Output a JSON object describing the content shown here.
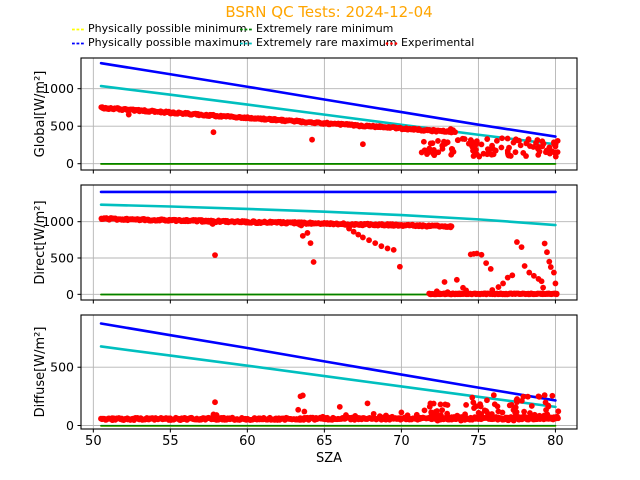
{
  "title": "BSRN QC Tests: 2024-12-04",
  "title_color": "#FFA500",
  "legend": {
    "entries": [
      {
        "label": "Physically possible minimum",
        "color": "#FFFF00",
        "style": "dashed"
      },
      {
        "label": "Extremely rare minimum",
        "color": "#008000",
        "style": "dashed"
      },
      {
        "label": "Physically possible maximum",
        "color": "#0000FF",
        "style": "dashed"
      },
      {
        "label": "Extremely rare maximum",
        "color": "#00BFBF",
        "style": "dashed"
      },
      {
        "label": "Experimental",
        "color": "#FF0000",
        "style": "dotted"
      }
    ]
  },
  "chart_data": {
    "type": "scatter",
    "title": "BSRN QC Tests: 2024-12-04",
    "xlabel": "SZA",
    "xlim": [
      49.2,
      81.4
    ],
    "xticks": [
      50,
      55,
      60,
      65,
      70,
      75,
      80
    ],
    "grid": true,
    "legend_position": "upper center, 2 rows",
    "line_x": [
      50.5,
      55,
      60,
      65,
      70,
      75,
      80
    ],
    "subplots": [
      {
        "name": "global",
        "ylabel": "Global[W/m²]",
        "ylim": [
          -84,
          1409
        ],
        "yticks": [
          0,
          500,
          1000
        ],
        "series": [
          {
            "name": "Physically possible minimum",
            "color": "#FFFF00",
            "values": [
              -4,
              -4,
              -4,
              -4,
              -4,
              -4,
              -4
            ]
          },
          {
            "name": "Physically possible maximum",
            "color": "#0000FF",
            "values": [
              1340,
              1192,
              1026,
              856,
              688,
              520,
              362
            ]
          },
          {
            "name": "Extremely rare minimum",
            "color": "#008000",
            "values": [
              -2,
              -2,
              -2,
              -2,
              -2,
              -2,
              -2
            ]
          },
          {
            "name": "Extremely rare maximum",
            "color": "#00BFBF",
            "values": [
              1035,
              920,
              788,
              654,
              519,
              386,
              259
            ]
          }
        ],
        "experimental": {
          "color": "#FF0000",
          "bands": [
            {
              "x0": 50.5,
              "x1": 73.5,
              "y0": 745,
              "y1": 420,
              "jitter": 12,
              "step": 0.07
            }
          ],
          "clouds": [
            {
              "x0": 71.3,
              "x1": 80.2,
              "n": 100,
              "ymin": 95,
              "ymax": 340,
              "bias": 1.2,
              "env": [
                71.5,
                480,
                80.3,
                305
              ]
            }
          ],
          "outliers": [
            [
              52.3,
              655
            ],
            [
              57.8,
              420
            ],
            [
              64.2,
              320
            ],
            [
              67.5,
              260
            ],
            [
              73.2,
              462
            ],
            [
              73.35,
              448
            ],
            [
              74.9,
              300
            ],
            [
              76.2,
              305
            ],
            [
              79.9,
              285
            ],
            [
              80.0,
              230
            ]
          ]
        }
      },
      {
        "name": "direct",
        "ylabel": "Direct[W/m²]",
        "ylim": [
          -78,
          1505
        ],
        "yticks": [
          0,
          500,
          1000
        ],
        "series": [
          {
            "name": "Physically possible minimum",
            "color": "#FFFF00",
            "values": [
              -4,
              -4,
              -4,
              -4,
              -4,
              -4,
              -4
            ]
          },
          {
            "name": "Physically possible maximum",
            "color": "#0000FF",
            "values": [
              1410,
              1410,
              1410,
              1410,
              1410,
              1410,
              1410
            ]
          },
          {
            "name": "Extremely rare minimum",
            "color": "#008000",
            "values": [
              -2,
              -2,
              -2,
              -2,
              -2,
              -2,
              -2
            ]
          },
          {
            "name": "Extremely rare maximum",
            "color": "#00BFBF",
            "values": [
              1234,
              1209,
              1176,
              1137,
              1091,
              1032,
              954
            ]
          }
        ],
        "experimental": {
          "color": "#FF0000",
          "bands": [
            {
              "x0": 50.5,
              "x1": 73.3,
              "y0": 1040,
              "y1": 935,
              "jitter": 13,
              "step": 0.07
            },
            {
              "x0": 71.8,
              "x1": 80.1,
              "y0": 6,
              "y1": 6,
              "jitter": 7,
              "step": 0.05
            }
          ],
          "clouds": [],
          "outliers": [
            [
              57.7,
              978
            ],
            [
              57.75,
              968
            ],
            [
              57.9,
              540
            ],
            [
              63.4,
              958
            ],
            [
              63.5,
              948
            ],
            [
              63.6,
              805
            ],
            [
              63.9,
              845
            ],
            [
              64.1,
              705
            ],
            [
              64.3,
              445
            ],
            [
              66.6,
              905
            ],
            [
              66.9,
              862
            ],
            [
              67.2,
              822
            ],
            [
              67.5,
              783
            ],
            [
              67.9,
              745
            ],
            [
              68.3,
              705
            ],
            [
              68.7,
              663
            ],
            [
              69.1,
              632
            ],
            [
              69.5,
              612
            ],
            [
              69.7,
              952
            ],
            [
              69.8,
              942
            ],
            [
              69.9,
              380
            ],
            [
              72.3,
              42
            ],
            [
              72.8,
              170
            ],
            [
              73.0,
              30
            ],
            [
              73.0,
              928
            ],
            [
              73.2,
              922
            ],
            [
              73.6,
              200
            ],
            [
              74.0,
              90
            ],
            [
              74.2,
              55
            ],
            [
              74.5,
              550
            ],
            [
              74.7,
              557
            ],
            [
              74.9,
              562
            ],
            [
              75.2,
              545
            ],
            [
              75.5,
              430
            ],
            [
              75.8,
              350
            ],
            [
              75.9,
              60
            ],
            [
              76.3,
              100
            ],
            [
              76.6,
              150
            ],
            [
              76.9,
              230
            ],
            [
              77.2,
              262
            ],
            [
              77.5,
              720
            ],
            [
              77.8,
              650
            ],
            [
              78.0,
              390
            ],
            [
              78.3,
              300
            ],
            [
              78.6,
              255
            ],
            [
              78.9,
              212
            ],
            [
              79.1,
              180
            ],
            [
              79.2,
              92
            ],
            [
              79.3,
              700
            ],
            [
              79.45,
              580
            ],
            [
              79.6,
              450
            ],
            [
              79.7,
              376
            ],
            [
              79.9,
              300
            ],
            [
              80.0,
              150
            ]
          ]
        }
      },
      {
        "name": "diffuse",
        "ylabel": "Diffuse[W/m²]",
        "ylim": [
          -30,
          948
        ],
        "yticks": [
          0,
          500
        ],
        "series": [
          {
            "name": "Physically possible minimum",
            "color": "#FFFF00",
            "values": [
              -4,
              -4,
              -4,
              -4,
              -4,
              -4,
              -4
            ]
          },
          {
            "name": "Physically possible maximum",
            "color": "#0000FF",
            "values": [
              875,
              775,
              665,
              550,
              437,
              325,
              215
            ]
          },
          {
            "name": "Extremely rare minimum",
            "color": "#008000",
            "values": [
              -2,
              -2,
              -2,
              -2,
              -2,
              -2,
              -2
            ]
          },
          {
            "name": "Extremely rare maximum",
            "color": "#00BFBF",
            "values": [
              678,
              600,
              513,
              424,
              335,
              246,
              160
            ]
          }
        ],
        "experimental": {
          "color": "#FF0000",
          "bands": [
            {
              "x0": 50.5,
              "x1": 73.0,
              "y0": 55,
              "y1": 60,
              "jitter": 10,
              "step": 0.07
            },
            {
              "x0": 73.0,
              "x1": 80.2,
              "y0": 60,
              "y1": 65,
              "jitter": 13,
              "step": 0.06
            }
          ],
          "clouds": [
            {
              "x0": 71.8,
              "x1": 80.2,
              "n": 80,
              "ymin": 42,
              "ymax": 270,
              "bias": 1.5,
              "env": [
                71.8,
                190,
                80.3,
                275
              ]
            }
          ],
          "outliers": [
            [
              57.8,
              95
            ],
            [
              57.9,
              200
            ],
            [
              58.0,
              90
            ],
            [
              63.3,
              135
            ],
            [
              63.45,
              250
            ],
            [
              63.6,
              258
            ],
            [
              63.7,
              120
            ],
            [
              64.9,
              75
            ],
            [
              66.0,
              160
            ],
            [
              66.4,
              90
            ],
            [
              67.0,
              82
            ],
            [
              67.8,
              190
            ],
            [
              68.2,
              100
            ],
            [
              68.6,
              80
            ],
            [
              69.0,
              86
            ],
            [
              69.4,
              75
            ],
            [
              70.0,
              112
            ],
            [
              70.4,
              88
            ],
            [
              71.0,
              92
            ],
            [
              71.5,
              130
            ],
            [
              74.6,
              240
            ],
            [
              76.0,
              260
            ],
            [
              78.9,
              250
            ],
            [
              79.3,
              260
            ],
            [
              79.8,
              255
            ]
          ]
        }
      }
    ]
  }
}
